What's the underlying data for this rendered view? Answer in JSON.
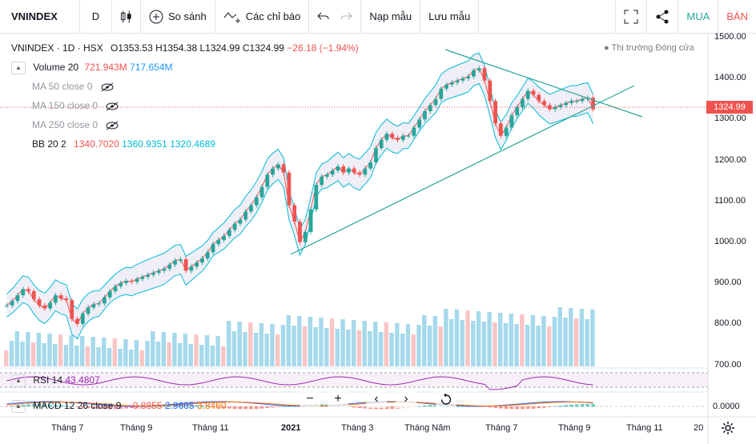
{
  "toolbar": {
    "symbol": "VNINDEX",
    "interval": "D",
    "compare": "So sánh",
    "indicators": "Các chỉ báo",
    "load_template": "Nạp mẫu",
    "save_template": "Lưu mẫu",
    "buy": "MUA",
    "sell": "BÁN"
  },
  "legend": {
    "title": "VNINDEX · 1D · HSX",
    "open": "O1353.53",
    "high": "H1354.38",
    "low": "L1324.99",
    "close": "C1324.99",
    "change": "−26.18 (−1.94%)",
    "market_status": "Thị trường Đóng cửa",
    "volume_label": "Volume 20",
    "volume_value1": "721.943M",
    "volume_value2": "717.654M",
    "ma50": "MA 50 close 0",
    "ma150": "MA 150 close 0",
    "ma250": "MA 250 close 0",
    "bb_label": "BB 20 2",
    "bb_mid": "1340.7020",
    "bb_up": "1360.9351",
    "bb_low": "1320.4689",
    "rsi_label": "RSI 14",
    "rsi_value": "43.4807",
    "macd_label": "MACD 12 26 close 9",
    "macd_hist": "−0.8855",
    "macd_line": "2.9605",
    "macd_signal": "3.8460"
  },
  "price_axis": [
    "1500.00",
    "1400.00",
    "1300.00",
    "1200.00",
    "1100.00",
    "1000.00",
    "900.00",
    "800.00",
    "700.00"
  ],
  "macd_axis": "0.0000",
  "current_price": "1324.99",
  "time_axis": [
    "Tháng 7",
    "Tháng 9",
    "Tháng 11",
    "2021",
    "Tháng 3",
    "Tháng Năm",
    "Tháng 7",
    "Tháng 9",
    "Tháng 11",
    "20"
  ],
  "colors": {
    "up": "#26a69a",
    "down": "#ef5350",
    "bb": "#00bcd4",
    "volume": "#5bc0de"
  },
  "chart_data": {
    "type": "candlestick",
    "y_range": [
      700,
      1500
    ],
    "closes": [
      845,
      856,
      870,
      885,
      880,
      860,
      845,
      838,
      852,
      870,
      862,
      858,
      812,
      800,
      825,
      840,
      848,
      850,
      865,
      880,
      892,
      900,
      905,
      903,
      910,
      915,
      920,
      925,
      930,
      935,
      945,
      955,
      958,
      930,
      940,
      950,
      960,
      975,
      995,
      1005,
      1015,
      1030,
      1045,
      1055,
      1075,
      1090,
      1110,
      1135,
      1165,
      1180,
      1190,
      1170,
      1090,
      1050,
      1000,
      1025,
      1080,
      1140,
      1160,
      1165,
      1175,
      1185,
      1170,
      1180,
      1170,
      1165,
      1180,
      1195,
      1230,
      1250,
      1265,
      1255,
      1250,
      1260,
      1260,
      1280,
      1300,
      1320,
      1335,
      1350,
      1375,
      1385,
      1390,
      1395,
      1400,
      1405,
      1420,
      1425,
      1395,
      1345,
      1290,
      1260,
      1280,
      1310,
      1330,
      1350,
      1370,
      1360,
      1345,
      1335,
      1325,
      1330,
      1335,
      1340,
      1345,
      1345,
      1350,
      1353,
      1325
    ]
  }
}
